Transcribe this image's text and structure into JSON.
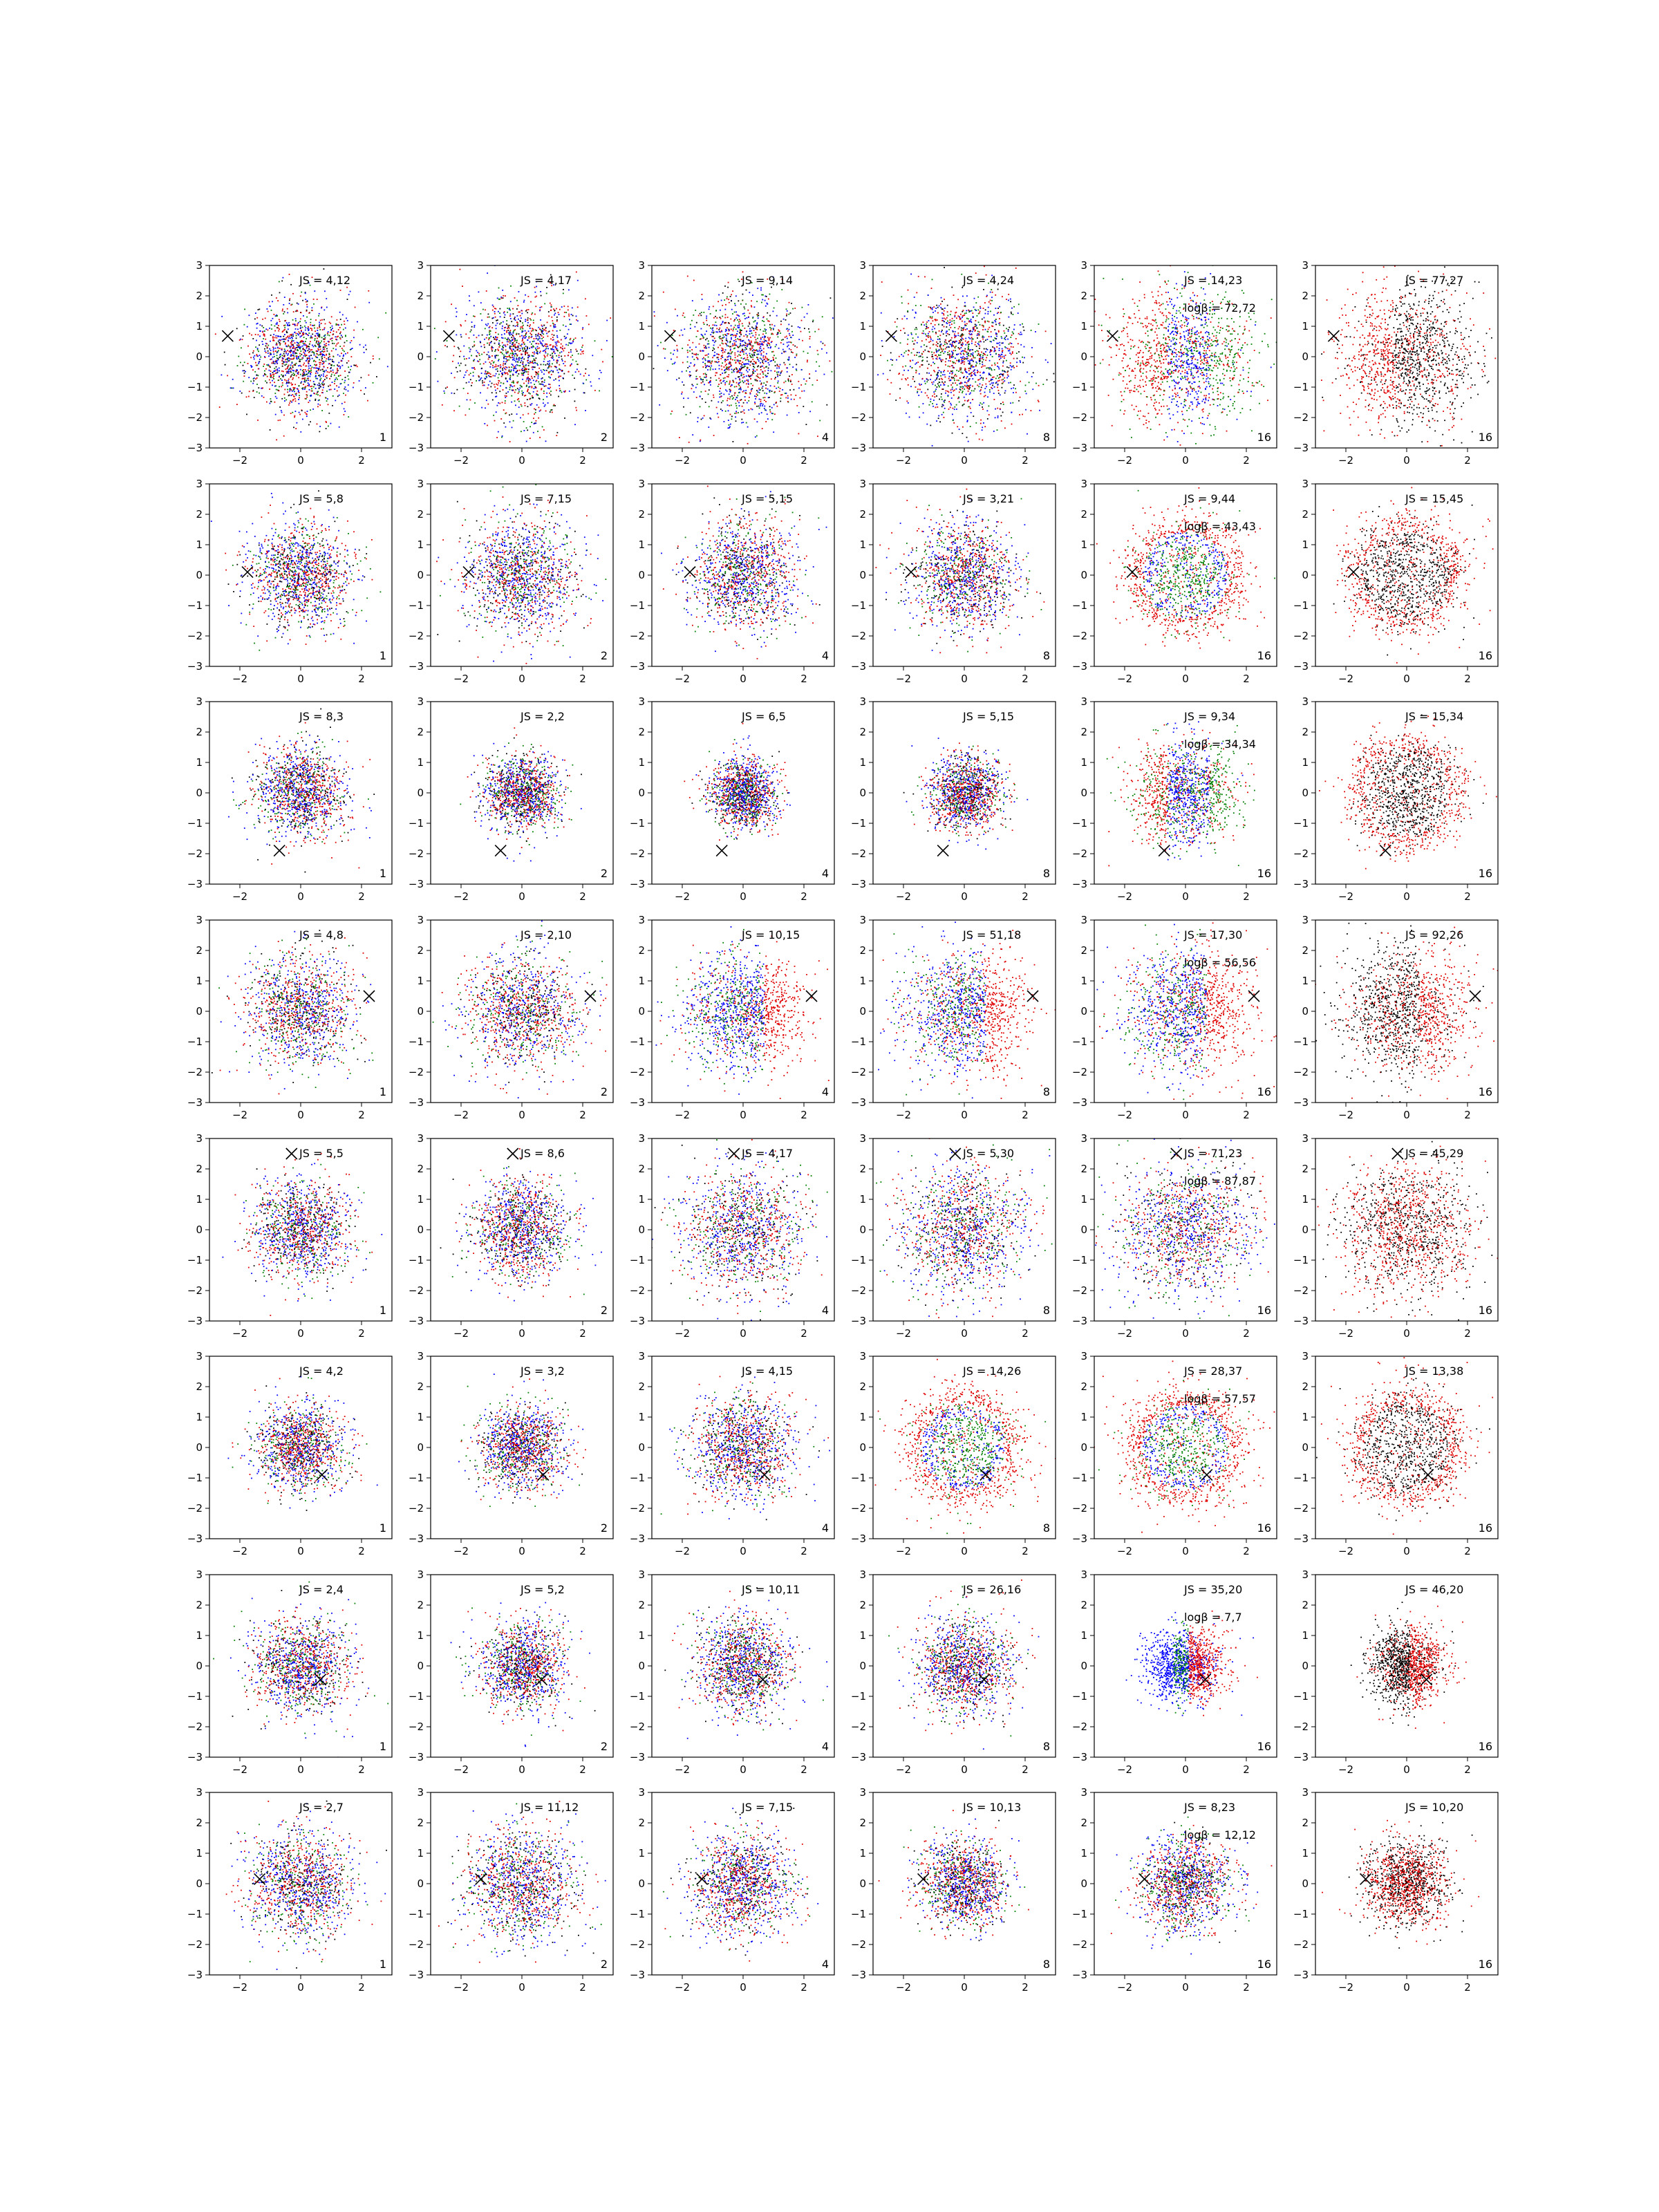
{
  "chart_data": {
    "type": "scatter",
    "layout": {
      "rows": 8,
      "cols": 6
    },
    "xlim": [
      -3,
      3
    ],
    "ylim": [
      -3,
      3
    ],
    "xticks": [
      -2,
      0,
      2
    ],
    "yticks": [
      -3,
      -2,
      -1,
      0,
      1,
      2,
      3
    ],
    "tick_labels_x": [
      "−2",
      "0",
      "2"
    ],
    "tick_labels_y": [
      "−3",
      "−2",
      "−1",
      "0",
      "1",
      "2",
      "3"
    ],
    "grid": false,
    "legend": "none",
    "colors": {
      "red": "#e00000",
      "green": "#008000",
      "blue": "#0000ff",
      "black": "#000000"
    },
    "panels": [
      {
        "row": 0,
        "col": 0,
        "js": "JS = 4,12",
        "logb": "",
        "count": "1",
        "marker": [
          -2.4,
          0.68
        ],
        "spread": 1.0,
        "scheme": "mix",
        "sigma": 0.9
      },
      {
        "row": 0,
        "col": 1,
        "js": "JS = 4,17",
        "logb": "",
        "count": "2",
        "marker": [
          -2.4,
          0.68
        ],
        "spread": 1.0,
        "scheme": "mix",
        "sigma": 1.0
      },
      {
        "row": 0,
        "col": 2,
        "js": "JS = 9,14",
        "logb": "",
        "count": "4",
        "marker": [
          -2.4,
          0.68
        ],
        "spread": 1.0,
        "scheme": "mix",
        "sigma": 1.05
      },
      {
        "row": 0,
        "col": 3,
        "js": "JS = 4,24",
        "logb": "",
        "count": "8",
        "marker": [
          -2.4,
          0.68
        ],
        "spread": 1.0,
        "scheme": "mix",
        "sigma": 1.05
      },
      {
        "row": 0,
        "col": 4,
        "js": "JS = 14,23",
        "logb": "logβ = 72,72",
        "count": "16",
        "marker": [
          -2.4,
          0.68
        ],
        "spread": 1.0,
        "scheme": "crescent",
        "sigma": 1.1
      },
      {
        "row": 0,
        "col": 5,
        "js": "JS = 77,27",
        "logb": "",
        "count": "16",
        "marker": [
          -2.4,
          0.68
        ],
        "spread": 1.0,
        "scheme": "redblack-crescent",
        "sigma": 1.1
      },
      {
        "row": 1,
        "col": 0,
        "js": "JS = 5,8",
        "logb": "",
        "count": "1",
        "marker": [
          -1.75,
          0.1
        ],
        "spread": 1.0,
        "scheme": "mix",
        "sigma": 0.85
      },
      {
        "row": 1,
        "col": 1,
        "js": "JS = 7,15",
        "logb": "",
        "count": "2",
        "marker": [
          -1.75,
          0.1
        ],
        "spread": 1.0,
        "scheme": "mix",
        "sigma": 0.95
      },
      {
        "row": 1,
        "col": 2,
        "js": "JS = 5,15",
        "logb": "",
        "count": "4",
        "marker": [
          -1.75,
          0.1
        ],
        "spread": 1.0,
        "scheme": "mix",
        "sigma": 0.9
      },
      {
        "row": 1,
        "col": 3,
        "js": "JS = 3,21",
        "logb": "",
        "count": "8",
        "marker": [
          -1.75,
          0.1
        ],
        "spread": 1.0,
        "scheme": "mix",
        "sigma": 0.9
      },
      {
        "row": 1,
        "col": 4,
        "js": "JS = 9,44",
        "logb": "logβ = 43,43",
        "count": "16",
        "marker": [
          -1.75,
          0.1
        ],
        "spread": 1.0,
        "scheme": "ring",
        "sigma": 0.95
      },
      {
        "row": 1,
        "col": 5,
        "js": "JS = 15,45",
        "logb": "",
        "count": "16",
        "marker": [
          -1.75,
          0.1
        ],
        "spread": 1.0,
        "scheme": "redblack-ring",
        "sigma": 0.95
      },
      {
        "row": 2,
        "col": 0,
        "js": "JS = 8,3",
        "logb": "",
        "count": "1",
        "marker": [
          -0.7,
          -1.9
        ],
        "spread": 1.0,
        "scheme": "mix",
        "sigma": 0.75
      },
      {
        "row": 2,
        "col": 1,
        "js": "JS = 2,2",
        "logb": "",
        "count": "2",
        "marker": [
          -0.7,
          -1.9
        ],
        "spread": 1.0,
        "scheme": "mix",
        "sigma": 0.6
      },
      {
        "row": 2,
        "col": 2,
        "js": "JS = 6,5",
        "logb": "",
        "count": "4",
        "marker": [
          -0.7,
          -1.9
        ],
        "spread": 1.0,
        "scheme": "mix",
        "sigma": 0.55
      },
      {
        "row": 2,
        "col": 3,
        "js": "JS = 5,15",
        "logb": "",
        "count": "8",
        "marker": [
          -0.7,
          -1.9
        ],
        "spread": 1.0,
        "scheme": "mix",
        "sigma": 0.6
      },
      {
        "row": 2,
        "col": 4,
        "js": "JS = 9,34",
        "logb": "logβ = 34,34",
        "count": "16",
        "marker": [
          -0.7,
          -1.9
        ],
        "spread": 1.0,
        "scheme": "crescent",
        "sigma": 0.85
      },
      {
        "row": 2,
        "col": 5,
        "js": "JS = 15,34",
        "logb": "",
        "count": "16",
        "marker": [
          -0.7,
          -1.9
        ],
        "spread": 1.0,
        "scheme": "redblack-ring",
        "sigma": 0.85
      },
      {
        "row": 3,
        "col": 0,
        "js": "JS = 4,8",
        "logb": "",
        "count": "1",
        "marker": [
          2.25,
          0.5
        ],
        "spread": 1.0,
        "scheme": "mix",
        "sigma": 0.9
      },
      {
        "row": 3,
        "col": 1,
        "js": "JS = 2,10",
        "logb": "",
        "count": "2",
        "marker": [
          2.25,
          0.5
        ],
        "spread": 1.0,
        "scheme": "mix",
        "sigma": 0.95
      },
      {
        "row": 3,
        "col": 2,
        "js": "JS = 10,15",
        "logb": "",
        "count": "4",
        "marker": [
          2.25,
          0.5
        ],
        "spread": 1.0,
        "scheme": "crescent-right",
        "sigma": 0.95
      },
      {
        "row": 3,
        "col": 3,
        "js": "JS = 51,18",
        "logb": "",
        "count": "8",
        "marker": [
          2.25,
          0.5
        ],
        "spread": 1.0,
        "scheme": "crescent-right",
        "sigma": 1.0
      },
      {
        "row": 3,
        "col": 4,
        "js": "JS = 17,30",
        "logb": "logβ = 56,56",
        "count": "16",
        "marker": [
          2.25,
          0.5
        ],
        "spread": 1.0,
        "scheme": "crescent-right",
        "sigma": 1.0
      },
      {
        "row": 3,
        "col": 5,
        "js": "JS = 92,26",
        "logb": "",
        "count": "16",
        "marker": [
          2.25,
          0.5
        ],
        "spread": 1.0,
        "scheme": "redblack-crescent-right",
        "sigma": 1.05
      },
      {
        "row": 4,
        "col": 0,
        "js": "JS = 5,5",
        "logb": "",
        "count": "1",
        "marker": [
          -0.3,
          2.5
        ],
        "spread": 1.0,
        "scheme": "mix",
        "sigma": 0.8
      },
      {
        "row": 4,
        "col": 1,
        "js": "JS = 8,6",
        "logb": "",
        "count": "2",
        "marker": [
          -0.3,
          2.5
        ],
        "spread": 1.0,
        "scheme": "mix",
        "sigma": 0.8
      },
      {
        "row": 4,
        "col": 2,
        "js": "JS = 4,17",
        "logb": "",
        "count": "4",
        "marker": [
          -0.3,
          2.5
        ],
        "spread": 1.0,
        "scheme": "mix",
        "sigma": 1.0
      },
      {
        "row": 4,
        "col": 3,
        "js": "JS = 5,30",
        "logb": "",
        "count": "8",
        "marker": [
          -0.3,
          2.5
        ],
        "spread": 1.0,
        "scheme": "mix",
        "sigma": 1.05
      },
      {
        "row": 4,
        "col": 4,
        "js": "JS = 71,23",
        "logb": "logβ = 87,87",
        "count": "16",
        "marker": [
          -0.3,
          2.5
        ],
        "spread": 1.0,
        "scheme": "mix",
        "sigma": 1.1
      },
      {
        "row": 4,
        "col": 5,
        "js": "JS = 45,29",
        "logb": "",
        "count": "16",
        "marker": [
          -0.3,
          2.5
        ],
        "spread": 1.0,
        "scheme": "redblack-mix",
        "sigma": 1.1
      },
      {
        "row": 5,
        "col": 0,
        "js": "JS = 4,2",
        "logb": "",
        "count": "1",
        "marker": [
          0.7,
          -0.9
        ],
        "spread": 1.0,
        "scheme": "mix",
        "sigma": 0.7
      },
      {
        "row": 5,
        "col": 1,
        "js": "JS = 3,2",
        "logb": "",
        "count": "2",
        "marker": [
          0.7,
          -0.9
        ],
        "spread": 1.0,
        "scheme": "mix",
        "sigma": 0.7
      },
      {
        "row": 5,
        "col": 2,
        "js": "JS = 4,15",
        "logb": "",
        "count": "4",
        "marker": [
          0.7,
          -0.9
        ],
        "spread": 1.0,
        "scheme": "mix",
        "sigma": 0.85
      },
      {
        "row": 5,
        "col": 3,
        "js": "JS = 14,26",
        "logb": "",
        "count": "8",
        "marker": [
          0.7,
          -0.9
        ],
        "spread": 1.0,
        "scheme": "ring",
        "sigma": 0.95
      },
      {
        "row": 5,
        "col": 4,
        "js": "JS = 28,37",
        "logb": "logβ = 57,57",
        "count": "16",
        "marker": [
          0.7,
          -0.9
        ],
        "spread": 1.0,
        "scheme": "ring",
        "sigma": 1.0
      },
      {
        "row": 5,
        "col": 5,
        "js": "JS = 13,38",
        "logb": "",
        "count": "16",
        "marker": [
          0.7,
          -0.9
        ],
        "spread": 1.0,
        "scheme": "redblack-ring",
        "sigma": 1.0
      },
      {
        "row": 6,
        "col": 0,
        "js": "JS = 2,4",
        "logb": "",
        "count": "1",
        "marker": [
          0.65,
          -0.45
        ],
        "spread": 1.0,
        "scheme": "mix",
        "sigma": 0.8
      },
      {
        "row": 6,
        "col": 1,
        "js": "JS = 5,2",
        "logb": "",
        "count": "2",
        "marker": [
          0.65,
          -0.45
        ],
        "spread": 1.0,
        "scheme": "mix",
        "sigma": 0.7
      },
      {
        "row": 6,
        "col": 2,
        "js": "JS = 10,11",
        "logb": "",
        "count": "4",
        "marker": [
          0.65,
          -0.45
        ],
        "spread": 1.0,
        "scheme": "mix",
        "sigma": 0.8
      },
      {
        "row": 6,
        "col": 3,
        "js": "JS = 26,16",
        "logb": "",
        "count": "8",
        "marker": [
          0.65,
          -0.45
        ],
        "spread": 1.0,
        "scheme": "mix",
        "sigma": 0.8
      },
      {
        "row": 6,
        "col": 4,
        "js": "JS = 35,20",
        "logb": "logβ = 7,7",
        "count": "16",
        "marker": [
          0.65,
          -0.45
        ],
        "spread": 1.0,
        "scheme": "right-red",
        "sigma": 0.6
      },
      {
        "row": 6,
        "col": 5,
        "js": "JS = 46,20",
        "logb": "",
        "count": "16",
        "marker": [
          0.65,
          -0.45
        ],
        "spread": 1.0,
        "scheme": "redblack-right",
        "sigma": 0.6
      },
      {
        "row": 7,
        "col": 0,
        "js": "JS = 2,7",
        "logb": "",
        "count": "1",
        "marker": [
          -1.35,
          0.15
        ],
        "spread": 1.0,
        "scheme": "mix",
        "sigma": 0.85
      },
      {
        "row": 7,
        "col": 1,
        "js": "JS = 11,12",
        "logb": "",
        "count": "2",
        "marker": [
          -1.35,
          0.15
        ],
        "spread": 1.0,
        "scheme": "mix",
        "sigma": 0.9
      },
      {
        "row": 7,
        "col": 2,
        "js": "JS = 7,15",
        "logb": "",
        "count": "4",
        "marker": [
          -1.35,
          0.15
        ],
        "spread": 1.0,
        "scheme": "mix",
        "sigma": 0.85
      },
      {
        "row": 7,
        "col": 3,
        "js": "JS = 10,13",
        "logb": "",
        "count": "8",
        "marker": [
          -1.35,
          0.15
        ],
        "spread": 1.0,
        "scheme": "mix",
        "sigma": 0.7
      },
      {
        "row": 7,
        "col": 4,
        "js": "JS = 8,23",
        "logb": "logβ = 12,12",
        "count": "16",
        "marker": [
          -1.35,
          0.15
        ],
        "spread": 1.0,
        "scheme": "mix",
        "sigma": 0.75
      },
      {
        "row": 7,
        "col": 5,
        "js": "JS = 10,20",
        "logb": "",
        "count": "16",
        "marker": [
          -1.35,
          0.15
        ],
        "spread": 1.0,
        "scheme": "redblack-mix",
        "sigma": 0.7
      }
    ]
  }
}
